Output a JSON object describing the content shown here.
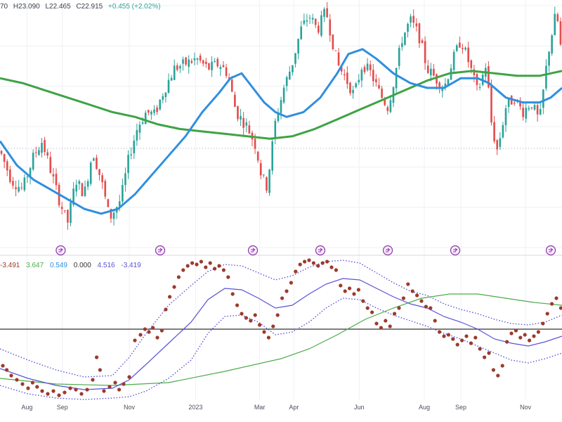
{
  "header": {
    "open_fragment": "70",
    "high": "H23.090",
    "low": "L22.465",
    "close": "C22.915",
    "change": "+0.455 (+2.02%)"
  },
  "indicator_values": {
    "v1": "-3.491",
    "v2": "3.647",
    "v3": "0.549",
    "v4": "0.000",
    "v5": "4.516",
    "v6": "-3.419"
  },
  "colors": {
    "candle_up": "#2aa39a",
    "candle_down": "#e34c4c",
    "ma_blue": "#2f8fe0",
    "ma_green": "#3fa344",
    "dots": "#9c3a2c",
    "band_line": "#5b52d6",
    "indicator_green": "#4cab4c",
    "zero_line": "#333333",
    "event_icon": "#8e35a9",
    "header_text": "#3b3f4a",
    "header_green": "#2aa39a"
  },
  "chart_data": [
    {
      "type": "line",
      "subtype": "candlestick_with_moving_averages",
      "title": "",
      "x_tick_labels": [
        "Aug",
        "Sep",
        "Nov",
        "2023",
        "Mar",
        "Apr",
        "Jun",
        "Aug",
        "Sep",
        "Nov"
      ],
      "x_tick_positions": [
        0.048,
        0.111,
        0.23,
        0.348,
        0.462,
        0.523,
        0.639,
        0.755,
        0.82,
        0.935
      ],
      "ylim": [
        0,
        100
      ],
      "grid": true,
      "legend": "none",
      "price_path": [
        [
          0.0,
          40
        ],
        [
          0.02,
          28
        ],
        [
          0.04,
          24
        ],
        [
          0.06,
          38
        ],
        [
          0.075,
          44
        ],
        [
          0.09,
          32
        ],
        [
          0.105,
          20
        ],
        [
          0.12,
          10
        ],
        [
          0.135,
          28
        ],
        [
          0.15,
          22
        ],
        [
          0.165,
          40
        ],
        [
          0.18,
          28
        ],
        [
          0.195,
          12
        ],
        [
          0.215,
          20
        ],
        [
          0.23,
          38
        ],
        [
          0.245,
          50
        ],
        [
          0.26,
          56
        ],
        [
          0.275,
          55
        ],
        [
          0.29,
          64
        ],
        [
          0.31,
          74
        ],
        [
          0.33,
          76
        ],
        [
          0.35,
          78
        ],
        [
          0.37,
          74
        ],
        [
          0.39,
          76
        ],
        [
          0.405,
          72
        ],
        [
          0.42,
          56
        ],
        [
          0.44,
          50
        ],
        [
          0.455,
          42
        ],
        [
          0.465,
          30
        ],
        [
          0.475,
          25
        ],
        [
          0.49,
          52
        ],
        [
          0.505,
          66
        ],
        [
          0.52,
          76
        ],
        [
          0.535,
          90
        ],
        [
          0.55,
          96
        ],
        [
          0.565,
          90
        ],
        [
          0.58,
          98
        ],
        [
          0.6,
          76
        ],
        [
          0.615,
          70
        ],
        [
          0.63,
          63
        ],
        [
          0.645,
          76
        ],
        [
          0.66,
          72
        ],
        [
          0.675,
          64
        ],
        [
          0.69,
          58
        ],
        [
          0.7,
          68
        ],
        [
          0.715,
          86
        ],
        [
          0.73,
          94
        ],
        [
          0.745,
          88
        ],
        [
          0.76,
          74
        ],
        [
          0.775,
          70
        ],
        [
          0.79,
          66
        ],
        [
          0.805,
          77
        ],
        [
          0.82,
          86
        ],
        [
          0.835,
          76
        ],
        [
          0.85,
          64
        ],
        [
          0.865,
          76
        ],
        [
          0.875,
          50
        ],
        [
          0.885,
          40
        ],
        [
          0.9,
          58
        ],
        [
          0.915,
          62
        ],
        [
          0.93,
          56
        ],
        [
          0.945,
          60
        ],
        [
          0.96,
          52
        ],
        [
          0.975,
          80
        ],
        [
          0.99,
          98
        ],
        [
          1.0,
          78
        ]
      ],
      "ma_fast": [
        [
          0.0,
          44
        ],
        [
          0.03,
          34
        ],
        [
          0.06,
          28
        ],
        [
          0.09,
          24
        ],
        [
          0.12,
          20
        ],
        [
          0.15,
          16
        ],
        [
          0.18,
          14
        ],
        [
          0.21,
          16
        ],
        [
          0.24,
          22
        ],
        [
          0.27,
          30
        ],
        [
          0.3,
          38
        ],
        [
          0.33,
          46
        ],
        [
          0.36,
          56
        ],
        [
          0.39,
          64
        ],
        [
          0.41,
          70
        ],
        [
          0.43,
          72
        ],
        [
          0.45,
          66
        ],
        [
          0.47,
          60
        ],
        [
          0.49,
          56
        ],
        [
          0.51,
          54
        ],
        [
          0.54,
          56
        ],
        [
          0.57,
          62
        ],
        [
          0.6,
          72
        ],
        [
          0.62,
          80
        ],
        [
          0.645,
          82
        ],
        [
          0.67,
          78
        ],
        [
          0.7,
          72
        ],
        [
          0.73,
          68
        ],
        [
          0.76,
          66
        ],
        [
          0.79,
          66
        ],
        [
          0.82,
          70
        ],
        [
          0.85,
          70
        ],
        [
          0.87,
          68
        ],
        [
          0.9,
          62
        ],
        [
          0.93,
          60
        ],
        [
          0.96,
          60
        ],
        [
          0.98,
          62
        ],
        [
          1.0,
          66
        ]
      ],
      "ma_slow": [
        [
          0.0,
          70
        ],
        [
          0.04,
          68
        ],
        [
          0.08,
          65
        ],
        [
          0.12,
          62
        ],
        [
          0.16,
          59
        ],
        [
          0.2,
          56
        ],
        [
          0.24,
          54
        ],
        [
          0.28,
          51
        ],
        [
          0.32,
          49
        ],
        [
          0.36,
          48
        ],
        [
          0.4,
          47
        ],
        [
          0.44,
          46
        ],
        [
          0.48,
          45
        ],
        [
          0.52,
          46
        ],
        [
          0.56,
          49
        ],
        [
          0.6,
          53
        ],
        [
          0.64,
          57
        ],
        [
          0.68,
          61
        ],
        [
          0.72,
          65
        ],
        [
          0.76,
          69
        ],
        [
          0.8,
          72
        ],
        [
          0.84,
          73
        ],
        [
          0.88,
          72
        ],
        [
          0.92,
          71
        ],
        [
          0.96,
          71
        ],
        [
          1.0,
          73
        ]
      ],
      "event_markers": [
        0.108,
        0.285,
        0.45,
        0.57,
        0.69,
        0.81,
        0.98
      ]
    },
    {
      "type": "scatter",
      "subtype": "oscillator_with_bands",
      "title": "",
      "ylim": [
        -100,
        100
      ],
      "zero_line": 0,
      "points": [
        [
          0.005,
          -52
        ],
        [
          0.012,
          -58
        ],
        [
          0.02,
          -66
        ],
        [
          0.03,
          -72
        ],
        [
          0.04,
          -78
        ],
        [
          0.05,
          -84
        ],
        [
          0.058,
          -76
        ],
        [
          0.066,
          -82
        ],
        [
          0.075,
          -88
        ],
        [
          0.085,
          -92
        ],
        [
          0.095,
          -88
        ],
        [
          0.105,
          -94
        ],
        [
          0.115,
          -90
        ],
        [
          0.125,
          -84
        ],
        [
          0.135,
          -86
        ],
        [
          0.145,
          -92
        ],
        [
          0.155,
          -86
        ],
        [
          0.165,
          -72
        ],
        [
          0.172,
          -40
        ],
        [
          0.178,
          -58
        ],
        [
          0.185,
          -88
        ],
        [
          0.195,
          -82
        ],
        [
          0.205,
          -76
        ],
        [
          0.212,
          -86
        ],
        [
          0.22,
          -78
        ],
        [
          0.23,
          -68
        ],
        [
          0.24,
          -16
        ],
        [
          0.25,
          -8
        ],
        [
          0.258,
          0
        ],
        [
          0.265,
          -4
        ],
        [
          0.272,
          2
        ],
        [
          0.28,
          -12
        ],
        [
          0.288,
          -2
        ],
        [
          0.295,
          28
        ],
        [
          0.302,
          46
        ],
        [
          0.31,
          60
        ],
        [
          0.318,
          74
        ],
        [
          0.326,
          84
        ],
        [
          0.334,
          90
        ],
        [
          0.342,
          94
        ],
        [
          0.35,
          92
        ],
        [
          0.358,
          96
        ],
        [
          0.366,
          88
        ],
        [
          0.374,
          94
        ],
        [
          0.382,
          86
        ],
        [
          0.39,
          90
        ],
        [
          0.398,
          84
        ],
        [
          0.406,
          74
        ],
        [
          0.414,
          50
        ],
        [
          0.422,
          34
        ],
        [
          0.43,
          22
        ],
        [
          0.438,
          16
        ],
        [
          0.446,
          12
        ],
        [
          0.454,
          20
        ],
        [
          0.462,
          6
        ],
        [
          0.47,
          -4
        ],
        [
          0.478,
          -12
        ],
        [
          0.486,
          4
        ],
        [
          0.494,
          20
        ],
        [
          0.502,
          44
        ],
        [
          0.51,
          54
        ],
        [
          0.518,
          66
        ],
        [
          0.526,
          82
        ],
        [
          0.534,
          92
        ],
        [
          0.542,
          96
        ],
        [
          0.55,
          98
        ],
        [
          0.558,
          94
        ],
        [
          0.566,
          90
        ],
        [
          0.574,
          94
        ],
        [
          0.582,
          96
        ],
        [
          0.59,
          88
        ],
        [
          0.598,
          84
        ],
        [
          0.606,
          62
        ],
        [
          0.614,
          54
        ],
        [
          0.622,
          58
        ],
        [
          0.63,
          50
        ],
        [
          0.638,
          56
        ],
        [
          0.646,
          40
        ],
        [
          0.654,
          30
        ],
        [
          0.662,
          24
        ],
        [
          0.67,
          8
        ],
        [
          0.678,
          2
        ],
        [
          0.686,
          12
        ],
        [
          0.694,
          4
        ],
        [
          0.702,
          22
        ],
        [
          0.71,
          30
        ],
        [
          0.718,
          44
        ],
        [
          0.726,
          64
        ],
        [
          0.734,
          54
        ],
        [
          0.742,
          48
        ],
        [
          0.75,
          40
        ],
        [
          0.758,
          32
        ],
        [
          0.766,
          30
        ],
        [
          0.774,
          12
        ],
        [
          0.782,
          -4
        ],
        [
          0.79,
          -10
        ],
        [
          0.798,
          -8
        ],
        [
          0.806,
          -14
        ],
        [
          0.814,
          -22
        ],
        [
          0.822,
          -16
        ],
        [
          0.83,
          -10
        ],
        [
          0.838,
          -20
        ],
        [
          0.846,
          -12
        ],
        [
          0.854,
          -28
        ],
        [
          0.862,
          -40
        ],
        [
          0.87,
          -34
        ],
        [
          0.878,
          -58
        ],
        [
          0.886,
          -66
        ],
        [
          0.894,
          -52
        ],
        [
          0.902,
          -18
        ],
        [
          0.91,
          -6
        ],
        [
          0.918,
          -2
        ],
        [
          0.926,
          -12
        ],
        [
          0.934,
          -8
        ],
        [
          0.942,
          -16
        ],
        [
          0.95,
          -10
        ],
        [
          0.958,
          -4
        ],
        [
          0.966,
          8
        ],
        [
          0.974,
          22
        ],
        [
          0.982,
          36
        ],
        [
          0.99,
          44
        ],
        [
          0.998,
          30
        ]
      ],
      "band_mid": [
        [
          0.0,
          -56
        ],
        [
          0.05,
          -70
        ],
        [
          0.1,
          -80
        ],
        [
          0.15,
          -86
        ],
        [
          0.2,
          -84
        ],
        [
          0.23,
          -72
        ],
        [
          0.26,
          -50
        ],
        [
          0.3,
          -20
        ],
        [
          0.34,
          10
        ],
        [
          0.37,
          42
        ],
        [
          0.4,
          58
        ],
        [
          0.43,
          56
        ],
        [
          0.46,
          44
        ],
        [
          0.49,
          30
        ],
        [
          0.52,
          34
        ],
        [
          0.55,
          50
        ],
        [
          0.58,
          64
        ],
        [
          0.61,
          72
        ],
        [
          0.64,
          70
        ],
        [
          0.67,
          58
        ],
        [
          0.7,
          46
        ],
        [
          0.73,
          36
        ],
        [
          0.76,
          30
        ],
        [
          0.79,
          18
        ],
        [
          0.82,
          10
        ],
        [
          0.85,
          0
        ],
        [
          0.88,
          -14
        ],
        [
          0.91,
          -20
        ],
        [
          0.94,
          -24
        ],
        [
          0.97,
          -18
        ],
        [
          1.0,
          -10
        ]
      ],
      "band_upper": [
        [
          0.0,
          -28
        ],
        [
          0.05,
          -44
        ],
        [
          0.1,
          -58
        ],
        [
          0.15,
          -68
        ],
        [
          0.2,
          -66
        ],
        [
          0.23,
          -40
        ],
        [
          0.26,
          -6
        ],
        [
          0.3,
          34
        ],
        [
          0.34,
          62
        ],
        [
          0.37,
          82
        ],
        [
          0.4,
          92
        ],
        [
          0.43,
          90
        ],
        [
          0.46,
          80
        ],
        [
          0.49,
          70
        ],
        [
          0.52,
          76
        ],
        [
          0.55,
          88
        ],
        [
          0.58,
          96
        ],
        [
          0.61,
          98
        ],
        [
          0.64,
          94
        ],
        [
          0.67,
          80
        ],
        [
          0.7,
          66
        ],
        [
          0.73,
          54
        ],
        [
          0.76,
          48
        ],
        [
          0.79,
          36
        ],
        [
          0.82,
          28
        ],
        [
          0.85,
          22
        ],
        [
          0.88,
          14
        ],
        [
          0.91,
          8
        ],
        [
          0.94,
          6
        ],
        [
          0.97,
          10
        ],
        [
          1.0,
          20
        ]
      ],
      "band_lower": [
        [
          0.0,
          -80
        ],
        [
          0.05,
          -92
        ],
        [
          0.1,
          -98
        ],
        [
          0.15,
          -100
        ],
        [
          0.2,
          -98
        ],
        [
          0.23,
          -96
        ],
        [
          0.26,
          -88
        ],
        [
          0.3,
          -70
        ],
        [
          0.34,
          -44
        ],
        [
          0.37,
          -6
        ],
        [
          0.4,
          18
        ],
        [
          0.43,
          20
        ],
        [
          0.46,
          10
        ],
        [
          0.49,
          -8
        ],
        [
          0.52,
          -4
        ],
        [
          0.55,
          10
        ],
        [
          0.58,
          30
        ],
        [
          0.61,
          44
        ],
        [
          0.64,
          42
        ],
        [
          0.67,
          30
        ],
        [
          0.7,
          20
        ],
        [
          0.73,
          12
        ],
        [
          0.76,
          4
        ],
        [
          0.79,
          -6
        ],
        [
          0.82,
          -14
        ],
        [
          0.85,
          -24
        ],
        [
          0.88,
          -34
        ],
        [
          0.91,
          -44
        ],
        [
          0.94,
          -48
        ],
        [
          0.97,
          -42
        ],
        [
          1.0,
          -34
        ]
      ],
      "signal_green": [
        [
          0.0,
          -70
        ],
        [
          0.1,
          -78
        ],
        [
          0.2,
          -80
        ],
        [
          0.3,
          -76
        ],
        [
          0.4,
          -60
        ],
        [
          0.5,
          -42
        ],
        [
          0.55,
          -28
        ],
        [
          0.6,
          -8
        ],
        [
          0.65,
          14
        ],
        [
          0.7,
          30
        ],
        [
          0.75,
          44
        ],
        [
          0.8,
          50
        ],
        [
          0.85,
          50
        ],
        [
          0.9,
          44
        ],
        [
          0.95,
          38
        ],
        [
          1.0,
          34
        ]
      ]
    }
  ]
}
